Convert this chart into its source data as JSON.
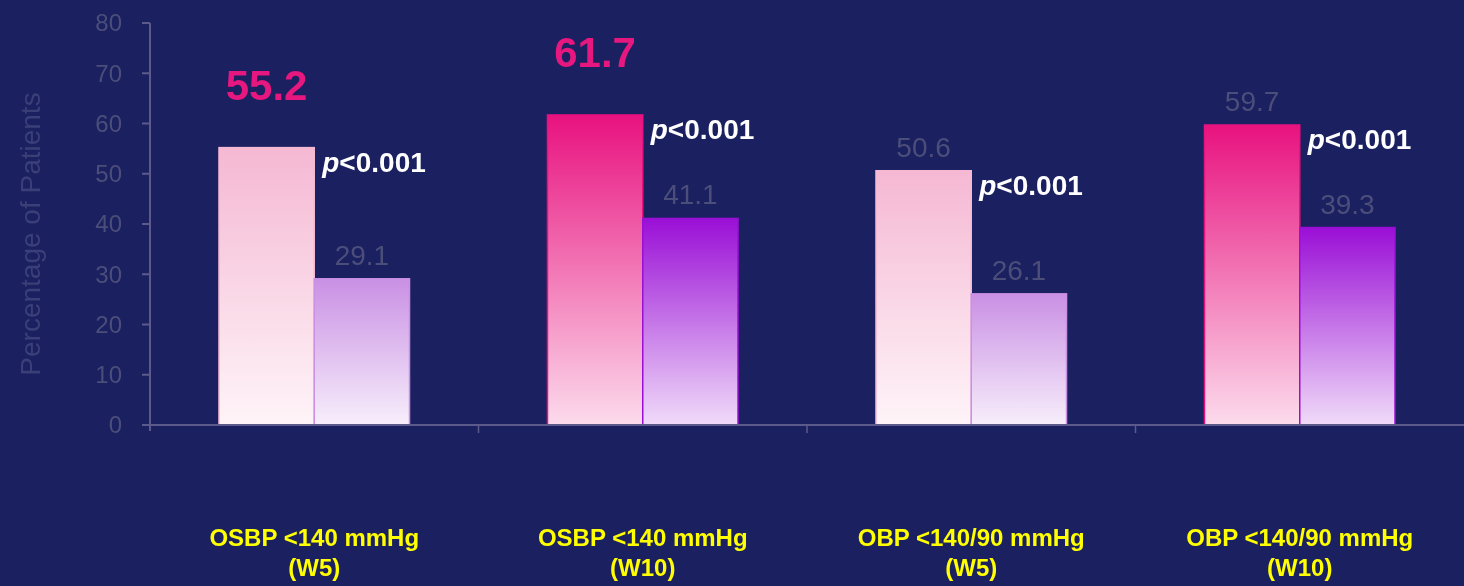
{
  "chart_data": {
    "type": "bar",
    "ylabel": "Percentage of Patients",
    "categories": [
      "OSBP <140 mmHg\n(W5)",
      "OSBP <140 mmHg\n(W10)",
      "OBP <140/90 mmHg\n(W5)",
      "OBP <140/90 mmHg\n(W10)"
    ],
    "series": [
      {
        "values": [
          55.2,
          61.7,
          50.6,
          59.7
        ],
        "colors": [
          "#f5b8d3",
          "#e8127f",
          "#f5b8d3",
          "#e8127f"
        ],
        "value_labels": [
          null,
          null,
          "50.6",
          "59.7"
        ]
      },
      {
        "values": [
          29.1,
          41.1,
          26.1,
          39.3
        ],
        "colors": [
          "#c990e4",
          "#9a0fd6",
          "#c990e4",
          "#9a0fd6"
        ],
        "value_labels": [
          "29.1",
          "41.1",
          "26.1",
          "39.3"
        ]
      }
    ],
    "ylim": [
      0,
      80
    ],
    "yticks": [
      0,
      10,
      20,
      30,
      40,
      50,
      60,
      70,
      80
    ],
    "annotations": [
      {
        "text": "55.2",
        "x": "OSBP <140 mmHg\n(W5)",
        "y": 55.2
      },
      {
        "text": "61.7",
        "x": "OSBP <140 mmHg\n(W10)",
        "y": 61.7
      },
      "p<0.001",
      "p<0.001",
      "p<0.001",
      "p<0.001"
    ]
  }
}
